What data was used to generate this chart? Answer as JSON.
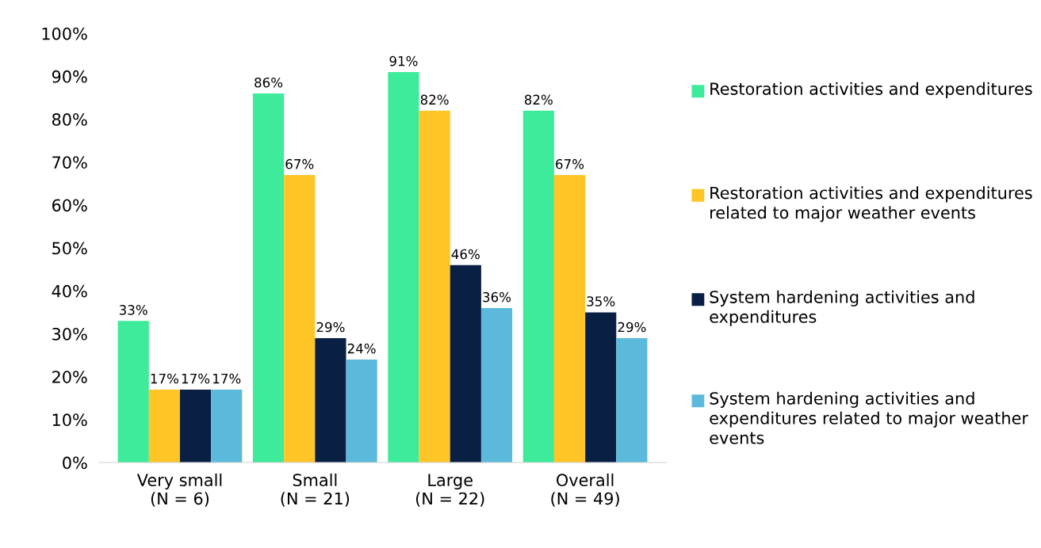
{
  "chart_data": {
    "type": "bar",
    "categories": [
      "Very small\n(N = 6)",
      "Small\n(N = 21)",
      "Large\n(N = 22)",
      "Overall\n(N = 49)"
    ],
    "series": [
      {
        "name": "Restoration activities and expenditures",
        "color": "#3deb9a",
        "values": [
          33,
          86,
          91,
          82
        ],
        "value_labels": [
          "33%",
          "86%",
          "91%",
          "82%"
        ]
      },
      {
        "name": "Restoration activities and expenditures related to major weather events",
        "color": "#ffc425",
        "values": [
          17,
          67,
          82,
          67
        ],
        "value_labels": [
          "17%",
          "67%",
          "82%",
          "67%"
        ]
      },
      {
        "name": "System hardening activities and expenditures",
        "color": "#0a1f44",
        "values": [
          17,
          29,
          46,
          35
        ],
        "value_labels": [
          "17%",
          "29%",
          "46%",
          "35%"
        ]
      },
      {
        "name": "System hardening activities and expenditures related to major weather events",
        "color": "#5bbadc",
        "values": [
          17,
          24,
          36,
          29
        ],
        "value_labels": [
          "17%",
          "24%",
          "36%",
          "29%"
        ]
      }
    ],
    "ylim": [
      0,
      100
    ],
    "yticks": [
      {
        "value": 0,
        "label": "0%"
      },
      {
        "value": 10,
        "label": "10%"
      },
      {
        "value": 20,
        "label": "20%"
      },
      {
        "value": 30,
        "label": "30%"
      },
      {
        "value": 40,
        "label": "40%"
      },
      {
        "value": 50,
        "label": "50%"
      },
      {
        "value": 60,
        "label": "60%"
      },
      {
        "value": 70,
        "label": "70%"
      },
      {
        "value": 80,
        "label": "80%"
      },
      {
        "value": 90,
        "label": "90%"
      },
      {
        "value": 100,
        "label": "100%"
      }
    ],
    "grid": false,
    "legend": "right"
  }
}
